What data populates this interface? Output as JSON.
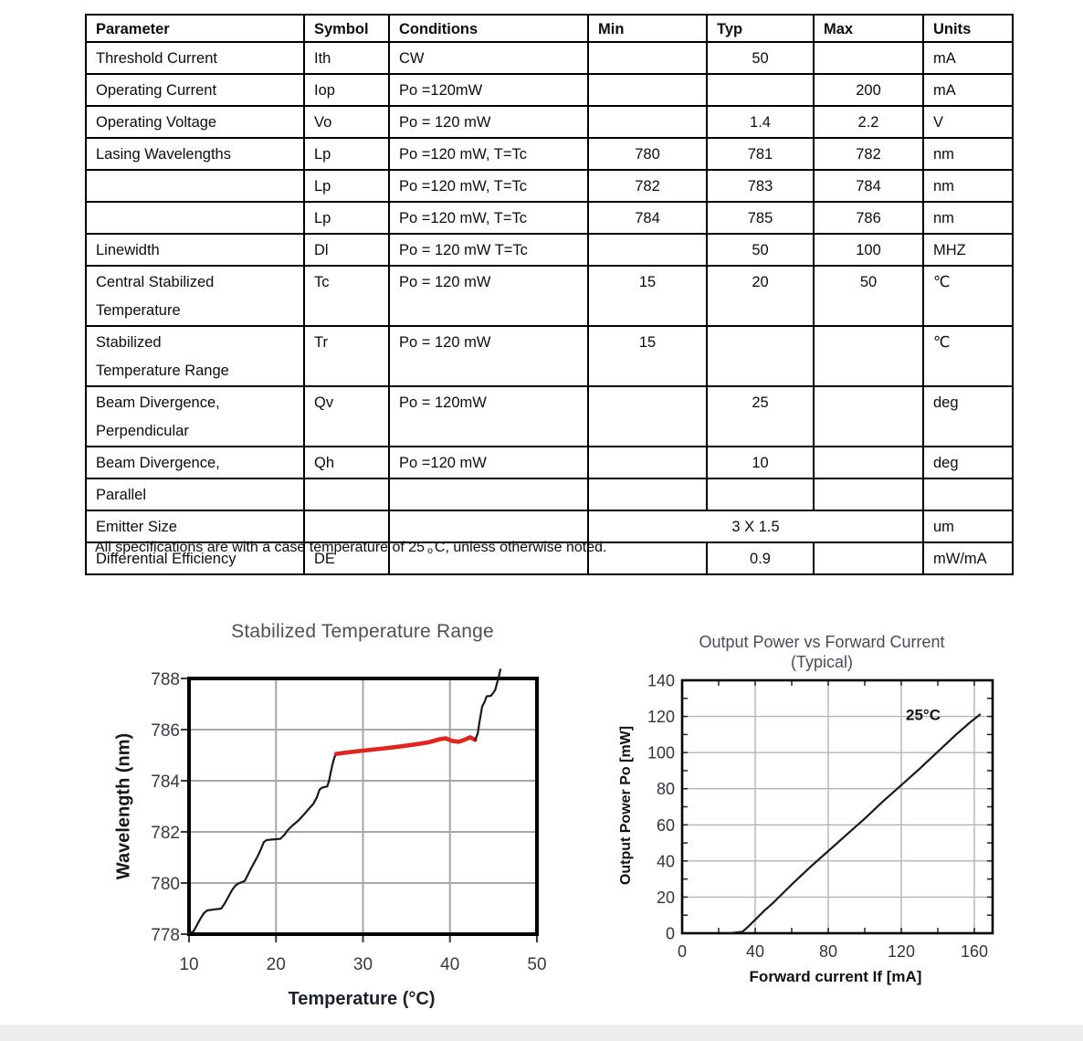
{
  "table": {
    "headers": [
      "Parameter",
      "Symbol",
      "Conditions",
      "Min",
      "Typ",
      "Max",
      "Units"
    ],
    "rows": [
      {
        "h": 32,
        "cells": [
          {
            "t": "Threshold Current"
          },
          {
            "t": "Ith"
          },
          {
            "t": "CW"
          },
          {
            "t": ""
          },
          {
            "t": "50"
          },
          {
            "t": ""
          },
          {
            "t": "mA"
          }
        ]
      },
      {
        "h": 32,
        "cells": [
          {
            "t": "Operating Current"
          },
          {
            "t": "Iop"
          },
          {
            "t": "Po =120mW"
          },
          {
            "t": ""
          },
          {
            "t": ""
          },
          {
            "t": "200"
          },
          {
            "t": "mA"
          }
        ]
      },
      {
        "h": 32,
        "cells": [
          {
            "t": "Operating Voltage"
          },
          {
            "t": "Vo"
          },
          {
            "t": "Po = 120 mW"
          },
          {
            "t": ""
          },
          {
            "t": "1.4"
          },
          {
            "t": "2.2"
          },
          {
            "t": "V"
          }
        ]
      },
      {
        "h": 32,
        "cells": [
          {
            "t": "Lasing Wavelengths"
          },
          {
            "t": "Lp"
          },
          {
            "t": "Po =120 mW, T=Tc"
          },
          {
            "t": "780"
          },
          {
            "t": "781"
          },
          {
            "t": "782"
          },
          {
            "t": "nm"
          }
        ]
      },
      {
        "h": 32,
        "cells": [
          {
            "t": ""
          },
          {
            "t": "Lp"
          },
          {
            "t": "Po =120 mW, T=Tc"
          },
          {
            "t": "782"
          },
          {
            "t": "783"
          },
          {
            "t": "784"
          },
          {
            "t": "nm"
          }
        ]
      },
      {
        "h": 32,
        "cells": [
          {
            "t": ""
          },
          {
            "t": "Lp"
          },
          {
            "t": "Po =120 mW, T=Tc"
          },
          {
            "t": "784"
          },
          {
            "t": "785"
          },
          {
            "t": "786"
          },
          {
            "t": "nm"
          }
        ]
      },
      {
        "h": 32,
        "cells": [
          {
            "t": "Linewidth"
          },
          {
            "t": "Dl"
          },
          {
            "t": "Po = 120 mW T=Tc"
          },
          {
            "t": ""
          },
          {
            "t": "50"
          },
          {
            "t": "100"
          },
          {
            "t": "MHZ"
          }
        ]
      },
      {
        "h": 64,
        "cells": [
          {
            "t": "Central Stabilized\nTemperature"
          },
          {
            "t": "Tc"
          },
          {
            "t": "Po = 120 mW"
          },
          {
            "t": "15"
          },
          {
            "t": "20"
          },
          {
            "t": "50"
          },
          {
            "t": "℃"
          }
        ]
      },
      {
        "h": 64,
        "cells": [
          {
            "t": "Stabilized\nTemperature Range"
          },
          {
            "t": "Tr"
          },
          {
            "t": "Po = 120 mW"
          },
          {
            "t": "15"
          },
          {
            "t": ""
          },
          {
            "t": ""
          },
          {
            "t": "℃"
          }
        ]
      },
      {
        "h": 64,
        "cells": [
          {
            "t": "Beam Divergence,\nPerpendicular"
          },
          {
            "t": "Qv"
          },
          {
            "t": "Po = 120mW"
          },
          {
            "t": ""
          },
          {
            "t": "25"
          },
          {
            "t": ""
          },
          {
            "t": "deg"
          }
        ]
      },
      {
        "h": 32,
        "cells": [
          {
            "t": "Beam Divergence,"
          },
          {
            "t": "Qh"
          },
          {
            "t": "Po =120 mW"
          },
          {
            "t": ""
          },
          {
            "t": "10"
          },
          {
            "t": ""
          },
          {
            "t": "deg"
          }
        ]
      },
      {
        "h": 32,
        "cells": [
          {
            "t": "Parallel"
          },
          {
            "t": ""
          },
          {
            "t": ""
          },
          {
            "t": ""
          },
          {
            "t": ""
          },
          {
            "t": ""
          },
          {
            "t": ""
          }
        ]
      },
      {
        "h": 32,
        "cells": [
          {
            "t": "Emitter Size"
          },
          {
            "t": ""
          },
          {
            "t": ""
          },
          {
            "t": "3 X 1.5",
            "cs": 3
          },
          {
            "t": "um"
          }
        ]
      },
      {
        "h": 32,
        "cells": [
          {
            "t": "Differential Efficiency"
          },
          {
            "t": "DE"
          },
          {
            "t": ""
          },
          {
            "t": ""
          },
          {
            "t": "0.9"
          },
          {
            "t": ""
          },
          {
            "t": "mW/mA"
          }
        ]
      }
    ]
  },
  "note": {
    "prefix": "All specifications are with a case temperature of 25",
    "sub": "o",
    "suffix": "C, unless otherwise noted."
  },
  "chart_data": [
    {
      "type": "line",
      "title": "Stabilized Temperature Range",
      "xlabel": "Temperature (°C)",
      "ylabel": "Wavelength (nm)",
      "xlim": [
        10,
        50
      ],
      "ylim": [
        778,
        788
      ],
      "xticks": [
        10,
        20,
        30,
        40,
        50
      ],
      "yticks": [
        778,
        780,
        782,
        784,
        786,
        788
      ],
      "grid": true,
      "legend": "none",
      "series": [
        {
          "name": "wavelength-curve-lower",
          "color": "#1a1a1a",
          "width": 2.2,
          "points": [
            [
              10,
              778.05
            ],
            [
              10.5,
              778.1
            ],
            [
              10.9,
              778.35
            ],
            [
              11.3,
              778.6
            ],
            [
              11.7,
              778.82
            ],
            [
              12.1,
              778.93
            ],
            [
              13.0,
              778.97
            ],
            [
              13.7,
              779.0
            ],
            [
              14.1,
              779.2
            ],
            [
              14.5,
              779.45
            ],
            [
              15.0,
              779.75
            ],
            [
              15.4,
              779.92
            ],
            [
              15.8,
              780.0
            ],
            [
              16.4,
              780.08
            ],
            [
              16.8,
              780.35
            ],
            [
              17.1,
              780.55
            ],
            [
              17.5,
              780.8
            ],
            [
              17.9,
              781.05
            ],
            [
              18.3,
              781.35
            ],
            [
              18.6,
              781.6
            ],
            [
              18.9,
              781.68
            ],
            [
              19.5,
              781.7
            ],
            [
              20.5,
              781.73
            ],
            [
              21.0,
              781.9
            ],
            [
              21.3,
              782.05
            ],
            [
              21.9,
              782.25
            ],
            [
              22.6,
              782.45
            ],
            [
              23.0,
              782.6
            ],
            [
              23.4,
              782.75
            ],
            [
              23.9,
              782.95
            ],
            [
              24.3,
              783.1
            ],
            [
              24.7,
              783.35
            ],
            [
              25.0,
              783.65
            ],
            [
              25.3,
              783.73
            ],
            [
              25.9,
              783.78
            ],
            [
              26.1,
              784.0
            ],
            [
              26.3,
              784.35
            ],
            [
              26.5,
              784.65
            ],
            [
              26.7,
              784.9
            ],
            [
              26.9,
              785.05
            ]
          ]
        },
        {
          "name": "stabilized-range-line",
          "color": "#e02420",
          "width": 4.6,
          "points": [
            [
              26.9,
              785.05
            ],
            [
              28,
              785.1
            ],
            [
              30,
              785.18
            ],
            [
              32,
              785.25
            ],
            [
              34,
              785.33
            ],
            [
              36,
              785.42
            ],
            [
              37.5,
              785.5
            ],
            [
              38.8,
              785.62
            ],
            [
              39.5,
              785.66
            ],
            [
              40.2,
              785.56
            ],
            [
              41.0,
              785.52
            ],
            [
              41.8,
              785.62
            ],
            [
              42.3,
              785.7
            ],
            [
              42.9,
              785.6
            ]
          ]
        },
        {
          "name": "wavelength-curve-upper",
          "color": "#1a1a1a",
          "width": 2.2,
          "points": [
            [
              42.9,
              785.6
            ],
            [
              43.2,
              785.85
            ],
            [
              43.4,
              786.3
            ],
            [
              43.7,
              786.9
            ],
            [
              44.0,
              787.1
            ],
            [
              44.2,
              787.3
            ],
            [
              44.7,
              787.32
            ],
            [
              45.0,
              787.45
            ],
            [
              45.2,
              787.55
            ],
            [
              45.4,
              787.8
            ],
            [
              45.6,
              788.05
            ],
            [
              45.8,
              788.35
            ]
          ]
        }
      ]
    },
    {
      "type": "line",
      "title": "Output Power vs Forward Current",
      "subtitle": "(Typical)",
      "xlabel": "Forward current If [mA]",
      "ylabel": "Output Power Po [mW]",
      "xlim": [
        0,
        170
      ],
      "ylim": [
        0,
        140
      ],
      "xticks": [
        0,
        40,
        80,
        120,
        160
      ],
      "yticks": [
        0,
        20,
        40,
        60,
        80,
        100,
        120,
        140
      ],
      "grid": true,
      "legend": "none",
      "annotation": {
        "text": "25°C",
        "x": 122.5,
        "y": 118
      },
      "series": [
        {
          "name": "output-power-line",
          "color": "#1a1a1a",
          "width": 2.2,
          "points": [
            [
              26,
              0
            ],
            [
              33,
              0.8
            ],
            [
              36,
              3.5
            ],
            [
              40,
              7.5
            ],
            [
              45,
              12.5
            ],
            [
              50,
              17
            ],
            [
              60,
              27
            ],
            [
              70,
              36.5
            ],
            [
              80,
              45.5
            ],
            [
              90,
              54.5
            ],
            [
              100,
              63.5
            ],
            [
              110,
              73
            ],
            [
              120,
              82
            ],
            [
              130,
              91
            ],
            [
              140,
              100.5
            ],
            [
              150,
              110
            ],
            [
              158,
              117
            ],
            [
              163,
              121
            ]
          ]
        }
      ]
    }
  ]
}
